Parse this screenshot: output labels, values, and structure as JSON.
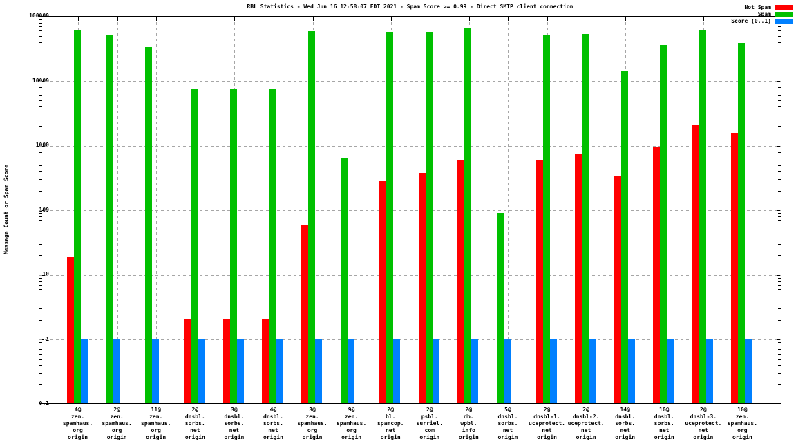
{
  "title": "RBL Statistics - Wed Jun 16 12:58:07 EDT 2021 - Spam Score >= 0.99 - Direct SMTP client connection",
  "ylabel": "Message Count or Spam Score",
  "legend": [
    {
      "label": "Not Spam",
      "color": "#ff0000"
    },
    {
      "label": "Spam",
      "color": "#00c000"
    },
    {
      "label": "Score (0..1)",
      "color": "#0080ff"
    }
  ],
  "colors": {
    "grid": "#a6a6a6",
    "frame": "#000000",
    "background": "#ffffff"
  },
  "chart_data": {
    "type": "bar",
    "y_scale": "log",
    "ylim": [
      0.1,
      100000
    ],
    "grid": true,
    "legend_position": "top-right",
    "title": "RBL Statistics - Wed Jun 16 12:58:07 EDT 2021 - Spam Score >= 0.99 - Direct SMTP client connection",
    "xlabel": "",
    "ylabel": "Message Count or Spam Score",
    "y_tick_labels": [
      "100000",
      "10000",
      "1000",
      "100",
      "10",
      "1",
      "0.1"
    ],
    "y_tick_values": [
      100000,
      10000,
      1000,
      100,
      10,
      1,
      0.1
    ],
    "categories": [
      [
        "4@",
        "zen.",
        "spamhaus.",
        "org",
        "origin"
      ],
      [
        "2@",
        "zen.",
        "spamhaus.",
        "org",
        "origin"
      ],
      [
        "11@",
        "zen.",
        "spamhaus.",
        "org",
        "origin"
      ],
      [
        "2@",
        "dnsbl.",
        "sorbs.",
        "net",
        "origin"
      ],
      [
        "3@",
        "dnsbl.",
        "sorbs.",
        "net",
        "origin"
      ],
      [
        "4@",
        "dnsbl.",
        "sorbs.",
        "net",
        "origin"
      ],
      [
        "3@",
        "zen.",
        "spamhaus.",
        "org",
        "origin"
      ],
      [
        "9@",
        "zen.",
        "spamhaus.",
        "org",
        "origin"
      ],
      [
        "2@",
        "bl.",
        "spamcop.",
        "net",
        "origin"
      ],
      [
        "2@",
        "psbl.",
        "surriel.",
        "com",
        "origin"
      ],
      [
        "2@",
        "db.",
        "wpbl.",
        "info",
        "origin"
      ],
      [
        "5@",
        "dnsbl.",
        "sorbs.",
        "net",
        "origin"
      ],
      [
        "2@",
        "dnsbl-1.",
        "uceprotect.",
        "net",
        "origin"
      ],
      [
        "2@",
        "dnsbl-2.",
        "uceprotect.",
        "net",
        "origin"
      ],
      [
        "14@",
        "dnsbl.",
        "sorbs.",
        "net",
        "origin"
      ],
      [
        "10@",
        "dnsbl.",
        "sorbs.",
        "net",
        "origin"
      ],
      [
        "2@",
        "dnsbl-3.",
        "uceprotect.",
        "net",
        "origin"
      ],
      [
        "10@",
        "zen.",
        "spamhaus.",
        "org",
        "origin"
      ]
    ],
    "series": [
      {
        "name": "Not Spam",
        "color": "#ff0000",
        "values": [
          18,
          0,
          0,
          2,
          2,
          2,
          57,
          0,
          270,
          365,
          575,
          0,
          565,
          700,
          320,
          940,
          2000,
          1490
        ]
      },
      {
        "name": "Spam",
        "color": "#00c000",
        "values": [
          58000,
          50000,
          32000,
          7200,
          7200,
          7200,
          57000,
          620,
          55500,
          53500,
          63000,
          88,
          49000,
          52000,
          14000,
          35000,
          58500,
          37300
        ]
      },
      {
        "name": "Score (0..1)",
        "color": "#0080ff",
        "values": [
          1,
          1,
          1,
          1,
          1,
          1,
          1,
          1,
          1,
          1,
          1,
          1,
          1,
          1,
          1,
          1,
          1,
          1
        ]
      }
    ]
  }
}
